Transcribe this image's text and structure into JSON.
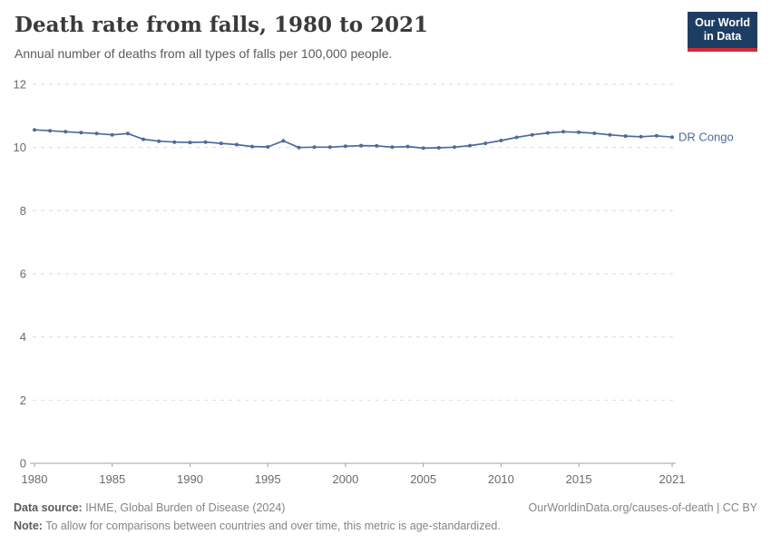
{
  "header": {
    "title": "Death rate from falls, 1980 to 2021",
    "subtitle": "Annual number of deaths from all types of falls per 100,000 people.",
    "logo": {
      "line1": "Our World",
      "line2": "in Data"
    }
  },
  "chart_data": {
    "type": "line",
    "title": "Death rate from falls, 1980 to 2021",
    "xlabel": "",
    "ylabel": "Annual deaths from falls per 100,000 people",
    "xlim": [
      1980,
      2021
    ],
    "ylim": [
      0,
      12
    ],
    "x_ticks": [
      1980,
      1985,
      1990,
      1995,
      2000,
      2005,
      2010,
      2015,
      2021
    ],
    "y_ticks": [
      0,
      2,
      4,
      6,
      8,
      10,
      12
    ],
    "grid": "horizontal-dashed",
    "legend_position": "end-of-line-label",
    "series": [
      {
        "name": "DR Congo",
        "color": "#4C6A9C",
        "x": [
          1980,
          1981,
          1982,
          1983,
          1984,
          1985,
          1986,
          1987,
          1988,
          1989,
          1990,
          1991,
          1992,
          1993,
          1994,
          1995,
          1996,
          1997,
          1998,
          1999,
          2000,
          2001,
          2002,
          2003,
          2004,
          2005,
          2006,
          2007,
          2008,
          2009,
          2010,
          2011,
          2012,
          2013,
          2014,
          2015,
          2016,
          2017,
          2018,
          2019,
          2020,
          2021
        ],
        "values": [
          10.56,
          10.53,
          10.5,
          10.47,
          10.44,
          10.4,
          10.44,
          10.26,
          10.2,
          10.17,
          10.16,
          10.17,
          10.13,
          10.09,
          10.03,
          10.02,
          10.21,
          10.0,
          10.01,
          10.01,
          10.04,
          10.06,
          10.05,
          10.01,
          10.03,
          9.98,
          9.99,
          10.01,
          10.06,
          10.13,
          10.22,
          10.32,
          10.4,
          10.46,
          10.5,
          10.48,
          10.45,
          10.4,
          10.36,
          10.34,
          10.37,
          10.33
        ]
      }
    ]
  },
  "footer": {
    "source_label": "Data source:",
    "source_text": " IHME, Global Burden of Disease (2024)",
    "link": "OurWorldinData.org/causes-of-death",
    "license": " | CC BY",
    "note_label": "Note:",
    "note_text": " To allow for comparisons between countries and over time, this metric is age-standardized."
  },
  "colors": {
    "accent_line": "#4C6A9C",
    "logo_background": "#1d3d63",
    "logo_red_bar": "#d12b35",
    "gridline": "#dddddd",
    "axis": "#a1a1a1",
    "tick_label": "#6b6b6b"
  }
}
